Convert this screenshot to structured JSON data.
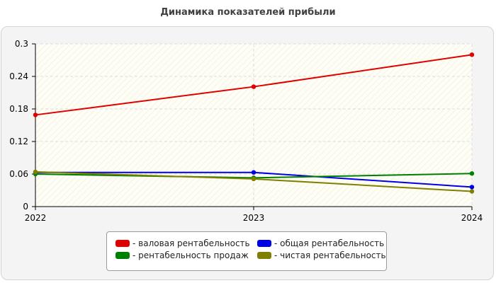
{
  "chart_data": {
    "type": "line",
    "title": "Динамика показателей прибыли",
    "xlabel": "",
    "ylabel": "",
    "x": [
      "2022",
      "2023",
      "2024"
    ],
    "ylim": [
      0,
      0.3
    ],
    "yticks": [
      "0",
      "0.06",
      "0.12",
      "0.18",
      "0.24",
      "0.3"
    ],
    "grid": true,
    "legend_position": "bottom",
    "series": [
      {
        "name": "- валовая рентабельность",
        "color": "#e00000",
        "values": [
          0.169,
          0.221,
          0.28
        ]
      },
      {
        "name": "- общая рентабельность",
        "color": "#0000e6",
        "values": [
          0.063,
          0.063,
          0.036
        ]
      },
      {
        "name": "- рентабельность продаж",
        "color": "#008000",
        "values": [
          0.06,
          0.053,
          0.061
        ]
      },
      {
        "name": "- чистая рентабельность",
        "color": "#808000",
        "values": [
          0.064,
          0.051,
          0.028
        ]
      }
    ]
  }
}
